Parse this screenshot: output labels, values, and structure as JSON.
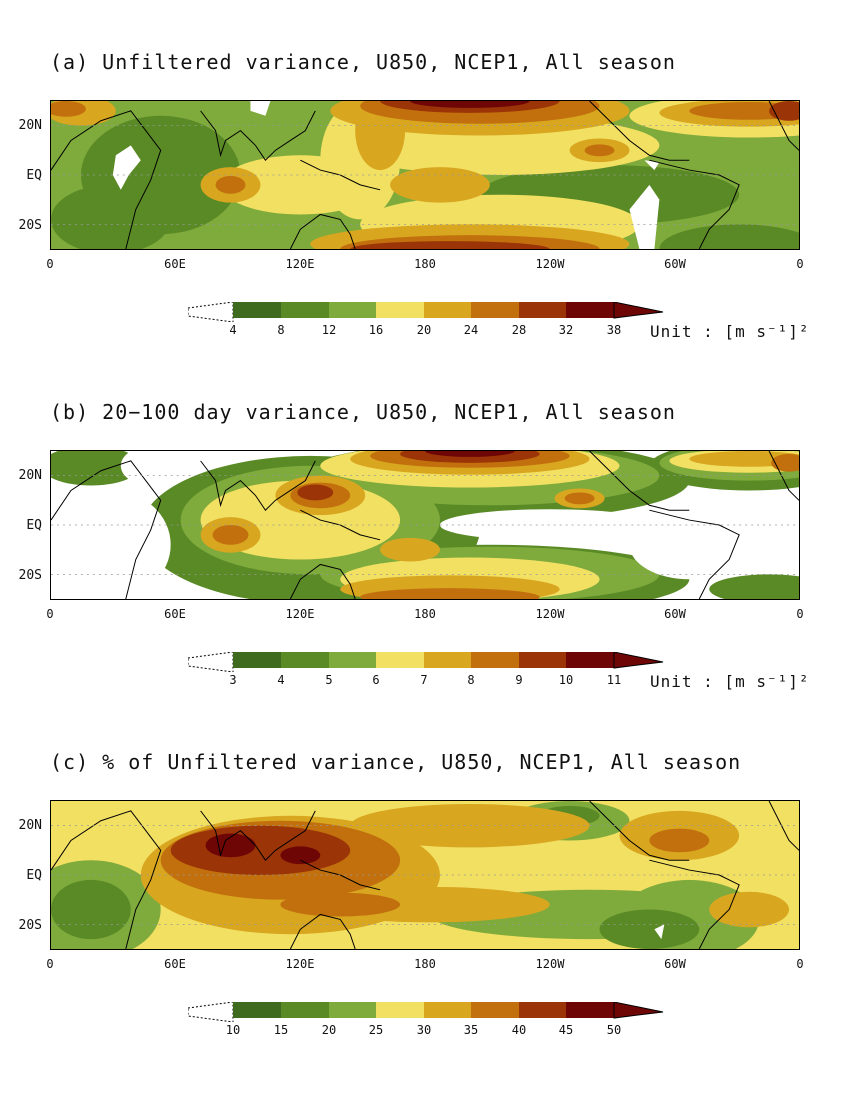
{
  "panels": [
    {
      "title": "(a) Unfiltered variance, U850, NCEP1, All season",
      "y_ticks": [
        "20N",
        "EQ",
        "20S"
      ],
      "x_ticks": [
        "0",
        "60E",
        "120E",
        "180",
        "120W",
        "60W",
        "0"
      ],
      "colorbar_labels": [
        "4",
        "8",
        "12",
        "16",
        "20",
        "24",
        "28",
        "32",
        "38"
      ],
      "unit": "Unit : [m s⁻¹]²"
    },
    {
      "title": "(b) 20−100 day variance, U850, NCEP1, All season",
      "y_ticks": [
        "20N",
        "EQ",
        "20S"
      ],
      "x_ticks": [
        "0",
        "60E",
        "120E",
        "180",
        "120W",
        "60W",
        "0"
      ],
      "colorbar_labels": [
        "3",
        "4",
        "5",
        "6",
        "7",
        "8",
        "9",
        "10",
        "11"
      ],
      "unit": "Unit : [m s⁻¹]²"
    },
    {
      "title": "(c) % of Unfiltered variance, U850, NCEP1, All season",
      "y_ticks": [
        "20N",
        "EQ",
        "20S"
      ],
      "x_ticks": [
        "0",
        "60E",
        "120E",
        "180",
        "120W",
        "60W",
        "0"
      ],
      "colorbar_labels": [
        "10",
        "15",
        "20",
        "25",
        "30",
        "35",
        "40",
        "45",
        "50"
      ]
    }
  ],
  "colors": {
    "palette": [
      "#3f6b1f",
      "#5a8a26",
      "#7fab3c",
      "#f2e063",
      "#d9a620",
      "#c1700d",
      "#9b3406",
      "#6e0606"
    ],
    "background_low": "#ffffff",
    "coastline": "#000000",
    "grid": "#999999"
  }
}
